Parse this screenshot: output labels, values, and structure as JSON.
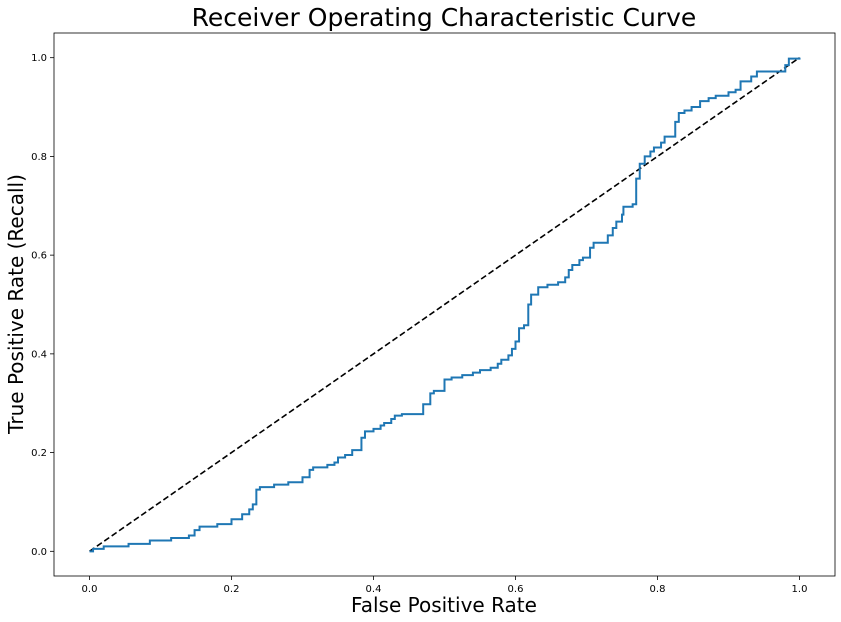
{
  "chart_data": {
    "type": "line",
    "title": "Receiver Operating Characteristic Curve",
    "xlabel": "False Positive Rate",
    "ylabel": "True Positive Rate (Recall)",
    "xlim": [
      -0.05,
      1.05
    ],
    "ylim": [
      -0.05,
      1.05
    ],
    "xticks": [
      "0.0",
      "0.2",
      "0.4",
      "0.6",
      "0.8",
      "1.0"
    ],
    "yticks": [
      "0.0",
      "0.2",
      "0.4",
      "0.6",
      "0.8",
      "1.0"
    ],
    "grid": false,
    "colors": {
      "roc": "#1f77b4",
      "diagonal": "#000000"
    },
    "series": [
      {
        "style": "solid-step",
        "points": [
          [
            0.0,
            0.0
          ],
          [
            0.005,
            0.0
          ],
          [
            0.005,
            0.005
          ],
          [
            0.02,
            0.005
          ],
          [
            0.02,
            0.01
          ],
          [
            0.055,
            0.01
          ],
          [
            0.055,
            0.015
          ],
          [
            0.085,
            0.015
          ],
          [
            0.085,
            0.022
          ],
          [
            0.115,
            0.022
          ],
          [
            0.115,
            0.027
          ],
          [
            0.14,
            0.027
          ],
          [
            0.14,
            0.032
          ],
          [
            0.148,
            0.032
          ],
          [
            0.148,
            0.043
          ],
          [
            0.155,
            0.043
          ],
          [
            0.155,
            0.05
          ],
          [
            0.18,
            0.05
          ],
          [
            0.18,
            0.055
          ],
          [
            0.2,
            0.055
          ],
          [
            0.2,
            0.065
          ],
          [
            0.215,
            0.065
          ],
          [
            0.215,
            0.075
          ],
          [
            0.225,
            0.075
          ],
          [
            0.225,
            0.085
          ],
          [
            0.23,
            0.085
          ],
          [
            0.23,
            0.095
          ],
          [
            0.235,
            0.095
          ],
          [
            0.235,
            0.125
          ],
          [
            0.24,
            0.125
          ],
          [
            0.24,
            0.13
          ],
          [
            0.26,
            0.13
          ],
          [
            0.26,
            0.135
          ],
          [
            0.28,
            0.135
          ],
          [
            0.28,
            0.14
          ],
          [
            0.3,
            0.14
          ],
          [
            0.3,
            0.15
          ],
          [
            0.31,
            0.15
          ],
          [
            0.31,
            0.165
          ],
          [
            0.315,
            0.165
          ],
          [
            0.315,
            0.17
          ],
          [
            0.335,
            0.17
          ],
          [
            0.335,
            0.175
          ],
          [
            0.345,
            0.175
          ],
          [
            0.345,
            0.18
          ],
          [
            0.35,
            0.18
          ],
          [
            0.35,
            0.19
          ],
          [
            0.36,
            0.19
          ],
          [
            0.36,
            0.195
          ],
          [
            0.37,
            0.195
          ],
          [
            0.37,
            0.205
          ],
          [
            0.383,
            0.205
          ],
          [
            0.383,
            0.23
          ],
          [
            0.388,
            0.23
          ],
          [
            0.388,
            0.243
          ],
          [
            0.4,
            0.243
          ],
          [
            0.4,
            0.248
          ],
          [
            0.41,
            0.248
          ],
          [
            0.41,
            0.255
          ],
          [
            0.415,
            0.255
          ],
          [
            0.415,
            0.26
          ],
          [
            0.425,
            0.26
          ],
          [
            0.425,
            0.268
          ],
          [
            0.43,
            0.268
          ],
          [
            0.43,
            0.275
          ],
          [
            0.44,
            0.275
          ],
          [
            0.44,
            0.278
          ],
          [
            0.47,
            0.278
          ],
          [
            0.47,
            0.298
          ],
          [
            0.48,
            0.298
          ],
          [
            0.48,
            0.32
          ],
          [
            0.485,
            0.32
          ],
          [
            0.485,
            0.325
          ],
          [
            0.5,
            0.325
          ],
          [
            0.5,
            0.348
          ],
          [
            0.51,
            0.348
          ],
          [
            0.51,
            0.352
          ],
          [
            0.525,
            0.352
          ],
          [
            0.525,
            0.357
          ],
          [
            0.54,
            0.357
          ],
          [
            0.54,
            0.362
          ],
          [
            0.55,
            0.362
          ],
          [
            0.55,
            0.367
          ],
          [
            0.565,
            0.367
          ],
          [
            0.565,
            0.372
          ],
          [
            0.575,
            0.372
          ],
          [
            0.575,
            0.38
          ],
          [
            0.58,
            0.38
          ],
          [
            0.58,
            0.388
          ],
          [
            0.59,
            0.388
          ],
          [
            0.59,
            0.397
          ],
          [
            0.595,
            0.397
          ],
          [
            0.595,
            0.41
          ],
          [
            0.6,
            0.41
          ],
          [
            0.6,
            0.425
          ],
          [
            0.605,
            0.425
          ],
          [
            0.605,
            0.452
          ],
          [
            0.612,
            0.452
          ],
          [
            0.612,
            0.458
          ],
          [
            0.618,
            0.458
          ],
          [
            0.618,
            0.5
          ],
          [
            0.622,
            0.5
          ],
          [
            0.622,
            0.52
          ],
          [
            0.632,
            0.52
          ],
          [
            0.632,
            0.535
          ],
          [
            0.645,
            0.535
          ],
          [
            0.645,
            0.54
          ],
          [
            0.66,
            0.54
          ],
          [
            0.66,
            0.545
          ],
          [
            0.67,
            0.545
          ],
          [
            0.67,
            0.555
          ],
          [
            0.675,
            0.555
          ],
          [
            0.675,
            0.57
          ],
          [
            0.68,
            0.57
          ],
          [
            0.68,
            0.58
          ],
          [
            0.69,
            0.58
          ],
          [
            0.69,
            0.59
          ],
          [
            0.695,
            0.59
          ],
          [
            0.695,
            0.595
          ],
          [
            0.705,
            0.595
          ],
          [
            0.705,
            0.615
          ],
          [
            0.71,
            0.615
          ],
          [
            0.71,
            0.625
          ],
          [
            0.73,
            0.625
          ],
          [
            0.73,
            0.64
          ],
          [
            0.737,
            0.64
          ],
          [
            0.737,
            0.655
          ],
          [
            0.742,
            0.655
          ],
          [
            0.742,
            0.668
          ],
          [
            0.75,
            0.668
          ],
          [
            0.75,
            0.682
          ],
          [
            0.752,
            0.682
          ],
          [
            0.752,
            0.698
          ],
          [
            0.765,
            0.698
          ],
          [
            0.765,
            0.703
          ],
          [
            0.77,
            0.703
          ],
          [
            0.77,
            0.755
          ],
          [
            0.775,
            0.755
          ],
          [
            0.775,
            0.785
          ],
          [
            0.782,
            0.785
          ],
          [
            0.782,
            0.8
          ],
          [
            0.79,
            0.8
          ],
          [
            0.79,
            0.81
          ],
          [
            0.795,
            0.81
          ],
          [
            0.795,
            0.818
          ],
          [
            0.805,
            0.818
          ],
          [
            0.805,
            0.828
          ],
          [
            0.81,
            0.828
          ],
          [
            0.81,
            0.84
          ],
          [
            0.825,
            0.84
          ],
          [
            0.825,
            0.87
          ],
          [
            0.83,
            0.87
          ],
          [
            0.83,
            0.888
          ],
          [
            0.838,
            0.888
          ],
          [
            0.838,
            0.893
          ],
          [
            0.848,
            0.893
          ],
          [
            0.848,
            0.9
          ],
          [
            0.86,
            0.9
          ],
          [
            0.86,
            0.912
          ],
          [
            0.872,
            0.912
          ],
          [
            0.872,
            0.918
          ],
          [
            0.882,
            0.918
          ],
          [
            0.882,
            0.923
          ],
          [
            0.9,
            0.923
          ],
          [
            0.9,
            0.93
          ],
          [
            0.91,
            0.93
          ],
          [
            0.91,
            0.935
          ],
          [
            0.917,
            0.935
          ],
          [
            0.917,
            0.952
          ],
          [
            0.932,
            0.952
          ],
          [
            0.932,
            0.962
          ],
          [
            0.94,
            0.962
          ],
          [
            0.94,
            0.972
          ],
          [
            0.98,
            0.972
          ],
          [
            0.98,
            0.985
          ],
          [
            0.985,
            0.985
          ],
          [
            0.985,
            0.998
          ],
          [
            1.0,
            0.998
          ],
          [
            1.0,
            1.0
          ]
        ]
      },
      {
        "style": "dashed",
        "points": [
          [
            0.0,
            0.0
          ],
          [
            1.0,
            1.0
          ]
        ]
      }
    ]
  }
}
